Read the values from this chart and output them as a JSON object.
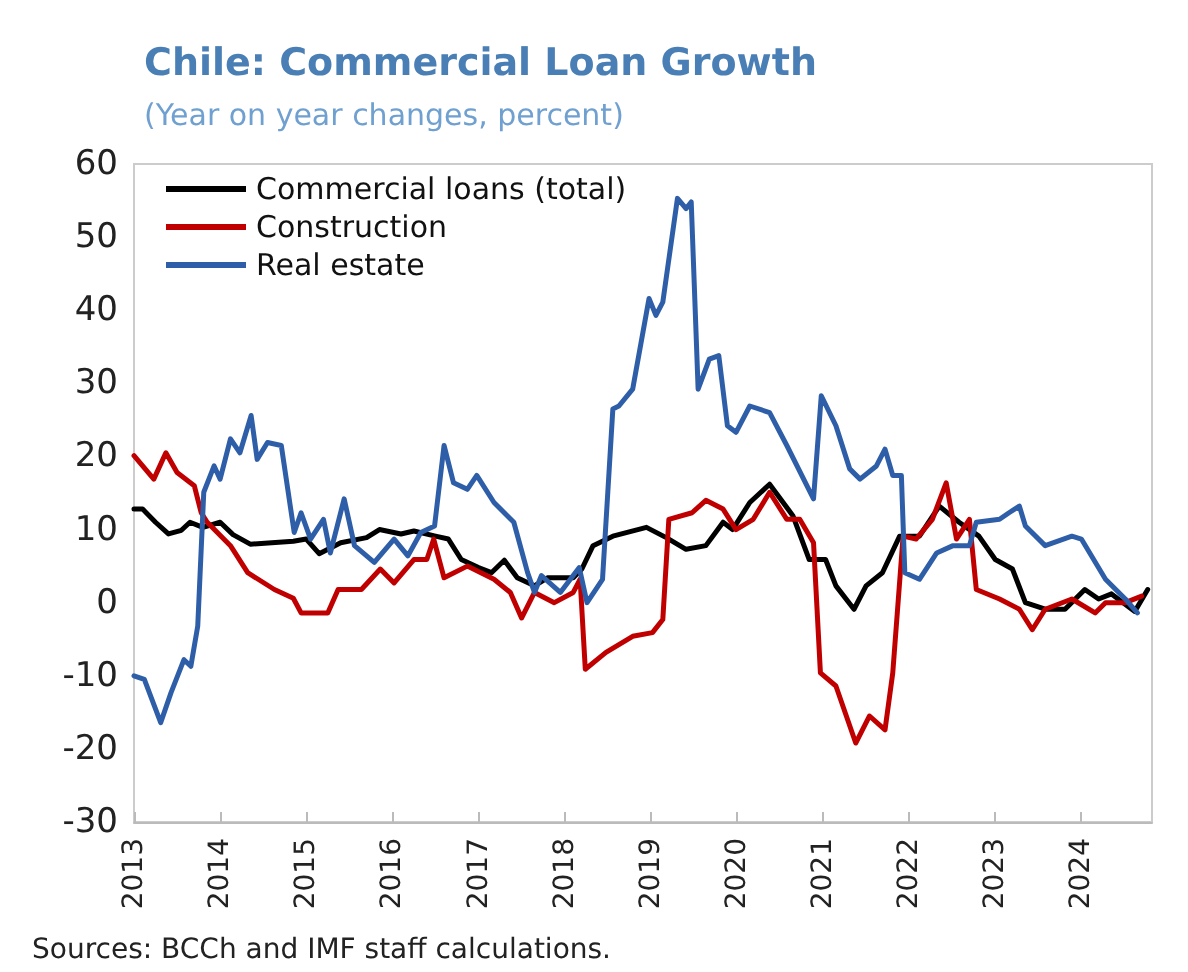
{
  "chart_data": {
    "type": "line",
    "title": "Chile: Commercial Loan Growth",
    "subtitle": "(Year on year changes, percent)",
    "annotations": [
      "Sources: BCCh and IMF staff calculations."
    ],
    "xlim": [
      2013,
      2024.82
    ],
    "xticks": [
      2013,
      2014,
      2015,
      2016,
      2017,
      2018,
      2019,
      2020,
      2021,
      2022,
      2023,
      2024
    ],
    "ylim": [
      -30,
      60
    ],
    "yticks": [
      -30,
      -20,
      -10,
      0,
      10,
      20,
      30,
      40,
      50,
      60
    ],
    "grid": false,
    "legend": "top left",
    "marker": "none",
    "line_style": "solid",
    "series": [
      {
        "name": "Commercial loans (total)",
        "color": "#000000",
        "x": [
          2013.0,
          2013.1,
          2013.25,
          2013.4,
          2013.55,
          2013.65,
          2013.8,
          2014.0,
          2014.15,
          2014.35,
          2014.6,
          2014.85,
          2015.0,
          2015.15,
          2015.4,
          2015.7,
          2015.85,
          2016.1,
          2016.25,
          2016.5,
          2016.65,
          2016.8,
          2017.0,
          2017.15,
          2017.3,
          2017.45,
          2017.65,
          2017.8,
          2018.0,
          2018.1,
          2018.2,
          2018.33,
          2018.56,
          2018.95,
          2019.18,
          2019.41,
          2019.64,
          2019.84,
          2019.95,
          2020.15,
          2020.38,
          2020.65,
          2020.84,
          2021.03,
          2021.15,
          2021.36,
          2021.5,
          2021.69,
          2021.89,
          2022.12,
          2022.35,
          2022.58,
          2022.81,
          2023.0,
          2023.2,
          2023.35,
          2023.58,
          2023.81,
          2024.04,
          2024.2,
          2024.35,
          2024.62,
          2024.77
        ],
        "values": [
          12.8,
          12.8,
          11,
          9.4,
          9.9,
          11,
          10.3,
          11,
          9.3,
          8,
          8.2,
          8.4,
          8.7,
          6.7,
          8.2,
          8.9,
          10,
          9.4,
          9.8,
          9.1,
          8.7,
          5.9,
          4.8,
          4.1,
          5.8,
          3.4,
          2.3,
          3.4,
          3.4,
          3.4,
          4.6,
          7.8,
          9.1,
          10.3,
          8.9,
          7.3,
          7.8,
          11,
          10,
          13.7,
          16.2,
          11.9,
          5.9,
          5.9,
          2.3,
          -0.9,
          2.3,
          4.1,
          9.1,
          9.1,
          13.2,
          11,
          9.1,
          5.9,
          4.6,
          0,
          -0.9,
          -0.9,
          1.8,
          0.5,
          1.2,
          -1.2,
          1.8
        ]
      },
      {
        "name": "Construction",
        "color": "#c00000",
        "x": [
          2013.0,
          2013.23,
          2013.37,
          2013.5,
          2013.7,
          2013.78,
          2013.85,
          2014.12,
          2014.32,
          2014.63,
          2014.85,
          2014.94,
          2015.25,
          2015.37,
          2015.64,
          2015.86,
          2016.02,
          2016.25,
          2016.4,
          2016.48,
          2016.6,
          2016.87,
          2017.18,
          2017.37,
          2017.5,
          2017.65,
          2017.88,
          2018.1,
          2018.18,
          2018.24,
          2018.48,
          2018.79,
          2019.02,
          2019.14,
          2019.21,
          2019.48,
          2019.64,
          2019.84,
          2019.99,
          2020.19,
          2020.38,
          2020.58,
          2020.73,
          2020.89,
          2020.97,
          2021.15,
          2021.38,
          2021.54,
          2021.72,
          2021.81,
          2021.93,
          2022.08,
          2022.27,
          2022.43,
          2022.55,
          2022.7,
          2022.78,
          2023.05,
          2023.28,
          2023.43,
          2023.58,
          2023.89,
          2024.16,
          2024.28,
          2024.51,
          2024.7
        ],
        "values": [
          20.1,
          16.9,
          20.5,
          17.8,
          16,
          12.3,
          11,
          7.8,
          4.1,
          1.8,
          0.6,
          -1.4,
          -1.4,
          1.8,
          1.8,
          4.6,
          2.7,
          5.9,
          5.9,
          8.7,
          3.4,
          5,
          3.2,
          1.4,
          -2.1,
          1.4,
          0,
          1.4,
          3.2,
          -9.1,
          -6.8,
          -4.6,
          -4.1,
          -2.3,
          11.4,
          12.3,
          14,
          12.8,
          10,
          11.4,
          15.1,
          11.4,
          11.4,
          8.2,
          -9.6,
          -11.4,
          -19.2,
          -15.5,
          -17.4,
          -9.6,
          9.1,
          8.7,
          11.4,
          16.4,
          8.7,
          11.4,
          1.8,
          0.5,
          -0.9,
          -3.7,
          -0.9,
          0.5,
          -1.4,
          0,
          0,
          0.9
        ]
      },
      {
        "name": "Real estate",
        "color": "#2f5ea8",
        "x": [
          2013.0,
          2013.12,
          2013.31,
          2013.43,
          2013.58,
          2013.66,
          2013.74,
          2013.81,
          2013.93,
          2014.0,
          2014.12,
          2014.23,
          2014.36,
          2014.43,
          2014.55,
          2014.71,
          2014.86,
          2014.94,
          2015.05,
          2015.2,
          2015.28,
          2015.44,
          2015.56,
          2015.79,
          2016.02,
          2016.18,
          2016.33,
          2016.49,
          2016.6,
          2016.71,
          2016.87,
          2016.98,
          2017.18,
          2017.41,
          2017.57,
          2017.65,
          2017.73,
          2017.95,
          2018.17,
          2018.26,
          2018.44,
          2018.56,
          2018.63,
          2018.79,
          2018.98,
          2019.06,
          2019.14,
          2019.31,
          2019.41,
          2019.47,
          2019.55,
          2019.68,
          2019.79,
          2019.89,
          2019.99,
          2020.15,
          2020.38,
          2020.58,
          2020.89,
          2020.98,
          2021.15,
          2021.31,
          2021.43,
          2021.62,
          2021.72,
          2021.81,
          2021.91,
          2021.95,
          2022.12,
          2022.32,
          2022.51,
          2022.7,
          2022.78,
          2023.05,
          2023.16,
          2023.28,
          2023.35,
          2023.58,
          2023.89,
          2024.0,
          2024.28,
          2024.51,
          2024.65
        ],
        "values": [
          -10,
          -10.5,
          -16.4,
          -12.3,
          -7.8,
          -8.7,
          -3.2,
          15.1,
          18.7,
          16.9,
          22.4,
          20.5,
          25.6,
          19.6,
          21.9,
          21.5,
          9.6,
          12.3,
          8.7,
          11.4,
          6.8,
          14.2,
          7.8,
          5.5,
          8.7,
          6.4,
          9.6,
          10.5,
          21.5,
          16.4,
          15.5,
          17.4,
          13.7,
          11,
          4.1,
          1.4,
          3.7,
          1.4,
          4.8,
          0,
          3.2,
          26.5,
          26.9,
          29.2,
          41.6,
          39.3,
          41.1,
          55.3,
          53.9,
          54.8,
          29.2,
          33.3,
          33.8,
          24.2,
          23.3,
          26.9,
          26,
          21.5,
          14.2,
          28.3,
          24.2,
          18.3,
          16.9,
          18.7,
          21,
          17.4,
          17.4,
          4.1,
          3.2,
          6.8,
          7.8,
          7.8,
          11,
          11.4,
          12.3,
          13.2,
          10.5,
          7.8,
          9.1,
          8.7,
          3.2,
          0.5,
          -1.4
        ]
      }
    ]
  }
}
